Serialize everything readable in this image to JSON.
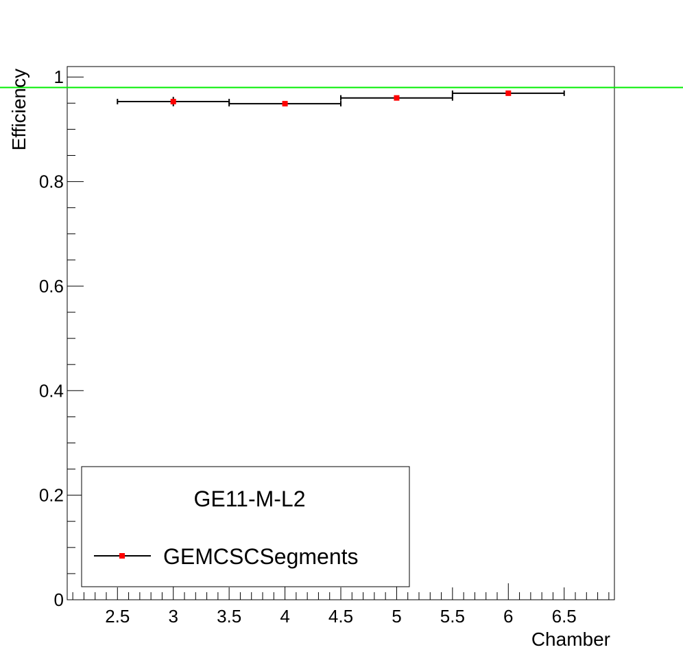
{
  "chart_data": {
    "type": "scatter",
    "xlabel": "Chamber",
    "ylabel": "Efficiency",
    "xlim": [
      2.05,
      6.95
    ],
    "ylim": [
      0,
      1.02
    ],
    "x_ticks": [
      "2.5",
      "3",
      "3.5",
      "4",
      "4.5",
      "5",
      "5.5",
      "6",
      "6.5"
    ],
    "y_ticks": [
      "0",
      "0.2",
      "0.4",
      "0.6",
      "0.8",
      "1"
    ],
    "grid": false,
    "legend": {
      "title": "GE11-M-L2",
      "position": "bottom-left",
      "entries": [
        "GEMCSCSegments"
      ]
    },
    "series": [
      {
        "name": "GEMCSCSegments",
        "color": "#ff0000",
        "points": [
          {
            "x": 3,
            "y": 0.953,
            "x_err": 0.5,
            "y_err": 0.009
          },
          {
            "x": 4,
            "y": 0.949,
            "x_err": 0.5,
            "y_err": 0.004
          },
          {
            "x": 5,
            "y": 0.96,
            "x_err": 0.5,
            "y_err": 0.004
          },
          {
            "x": 6,
            "y": 0.969,
            "x_err": 0.5,
            "y_err": 0.004
          }
        ]
      }
    ],
    "reference_line": {
      "y": 0.98,
      "color": "#00ee00"
    }
  }
}
